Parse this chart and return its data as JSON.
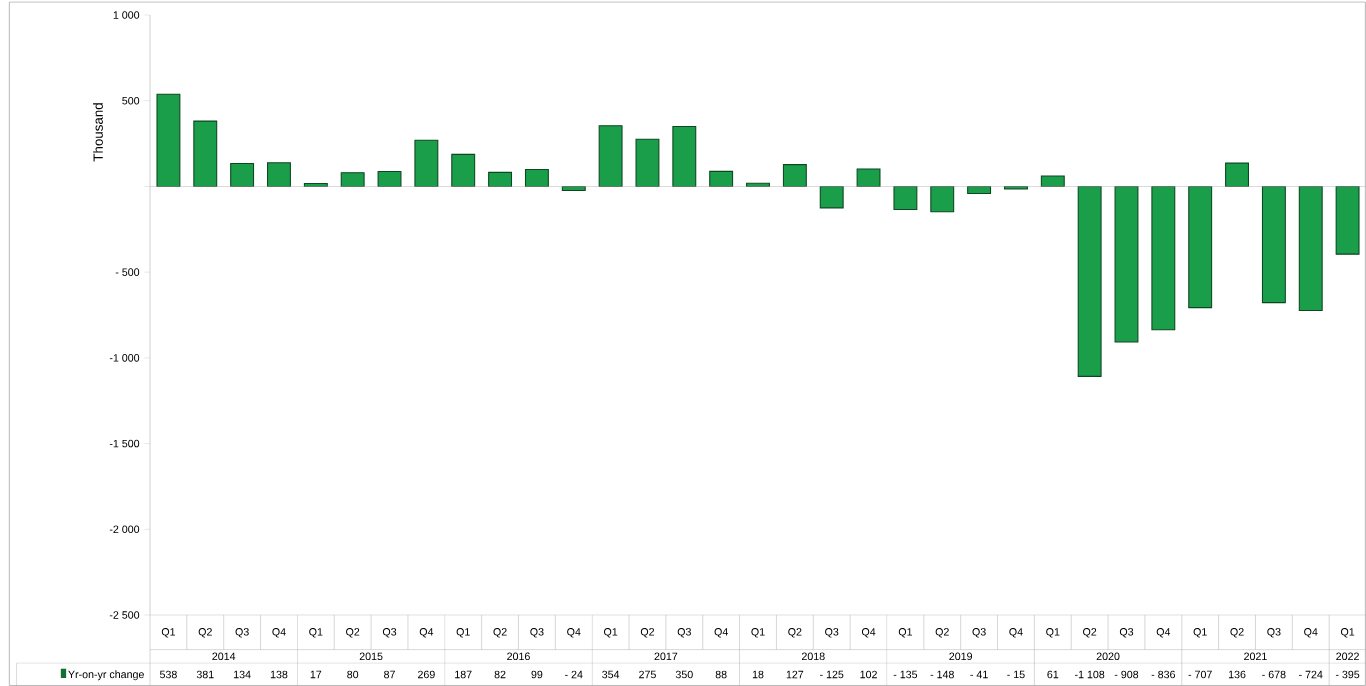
{
  "chart_data": {
    "type": "bar",
    "ylabel": "Thousand",
    "categories": [
      "Q1",
      "Q2",
      "Q3",
      "Q4",
      "Q1",
      "Q2",
      "Q3",
      "Q4",
      "Q1",
      "Q2",
      "Q3",
      "Q4",
      "Q1",
      "Q2",
      "Q3",
      "Q4",
      "Q1",
      "Q2",
      "Q3",
      "Q4",
      "Q1",
      "Q2",
      "Q3",
      "Q4",
      "Q1",
      "Q2",
      "Q3",
      "Q4",
      "Q1",
      "Q2",
      "Q3",
      "Q4",
      "Q1"
    ],
    "annotations": [
      "2014",
      "2015",
      "2016",
      "2017",
      "2018",
      "2019",
      "2020",
      "2021",
      "2022"
    ],
    "series": [
      {
        "name": "Yr-on-yr change",
        "color": "#1a9e4a",
        "values": [
          538,
          381,
          134,
          138,
          17,
          80,
          87,
          269,
          187,
          82,
          99,
          -24,
          354,
          275,
          350,
          88,
          18,
          127,
          -125,
          102,
          -135,
          -148,
          -41,
          -15,
          61,
          -1108,
          -908,
          -836,
          -707,
          136,
          -678,
          -724,
          -395
        ],
        "value_labels": [
          "538",
          "381",
          "134",
          "138",
          "17",
          "80",
          "87",
          "269",
          "187",
          "82",
          "99",
          "- 24",
          "354",
          "275",
          "350",
          "88",
          "18",
          "127",
          "- 125",
          "102",
          "- 135",
          "- 148",
          "- 41",
          "- 15",
          "61",
          "-1 108",
          "- 908",
          "- 836",
          "- 707",
          "136",
          "- 678",
          "- 724",
          "- 395"
        ]
      }
    ],
    "ylim": [
      -2500,
      1000
    ],
    "yticks": [
      {
        "value": -2500,
        "label": "-2 500"
      },
      {
        "value": -2000,
        "label": "-2 000"
      },
      {
        "value": -1500,
        "label": "-1 500"
      },
      {
        "value": -1000,
        "label": "-1 000"
      },
      {
        "value": -500,
        "label": "- 500"
      },
      {
        "value": 0,
        "label": null
      },
      {
        "value": 500,
        "label": "500"
      },
      {
        "value": 1000,
        "label": "1 000"
      }
    ],
    "legend": "bottom"
  }
}
